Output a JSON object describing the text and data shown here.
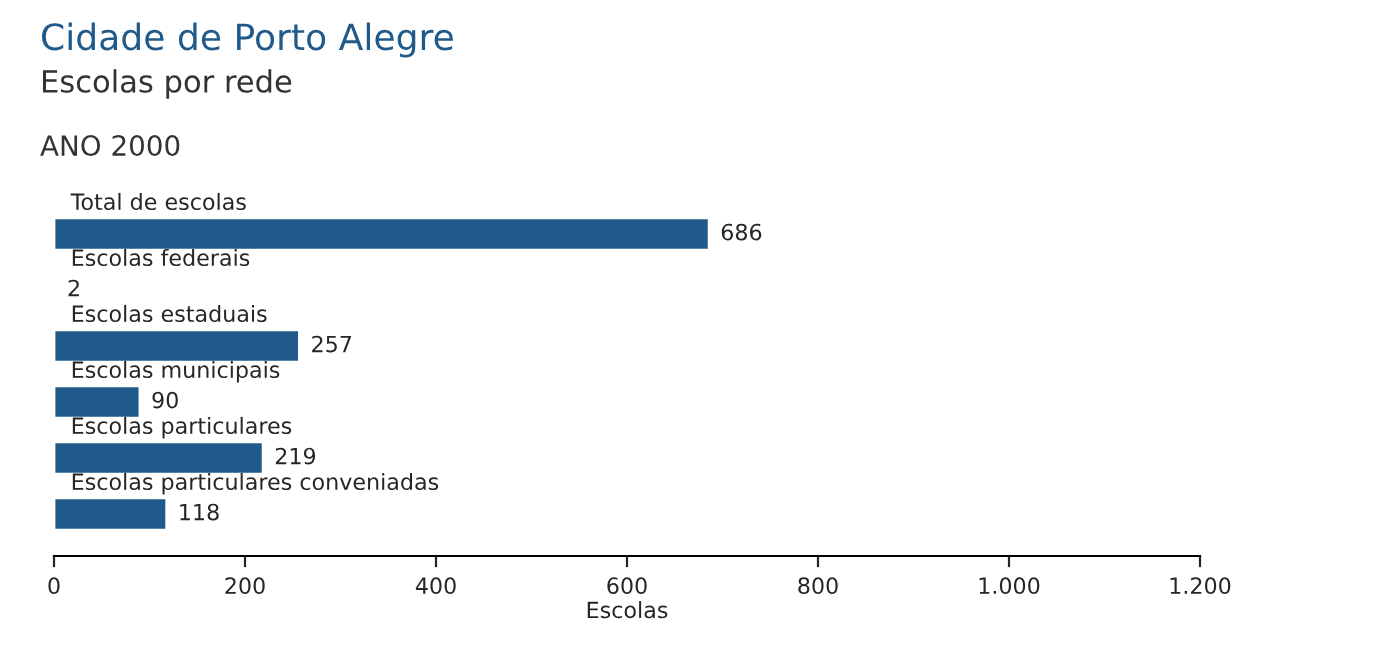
{
  "chart_data": {
    "type": "bar",
    "orientation": "horizontal",
    "title": "Cidade de Porto Alegre",
    "subtitle": "Escolas por rede",
    "annotations": [
      "ANO 2000"
    ],
    "xlabel": "Escolas",
    "categories": [
      "Total de escolas",
      "Escolas federais",
      "Escolas estaduais",
      "Escolas municipais",
      "Escolas particulares",
      "Escolas particulares conveniadas"
    ],
    "values": [
      686,
      2,
      257,
      90,
      219,
      118
    ],
    "color": "#1f5a8a",
    "data_labels": true,
    "xlim": [
      0,
      1200
    ],
    "xticks": [
      0,
      200,
      400,
      600,
      800,
      {
        "value": 1000,
        "label": "1.000"
      },
      {
        "value": 1200,
        "label": "1.200"
      }
    ],
    "tick_labels": "x",
    "grid": false,
    "legend": false
  }
}
